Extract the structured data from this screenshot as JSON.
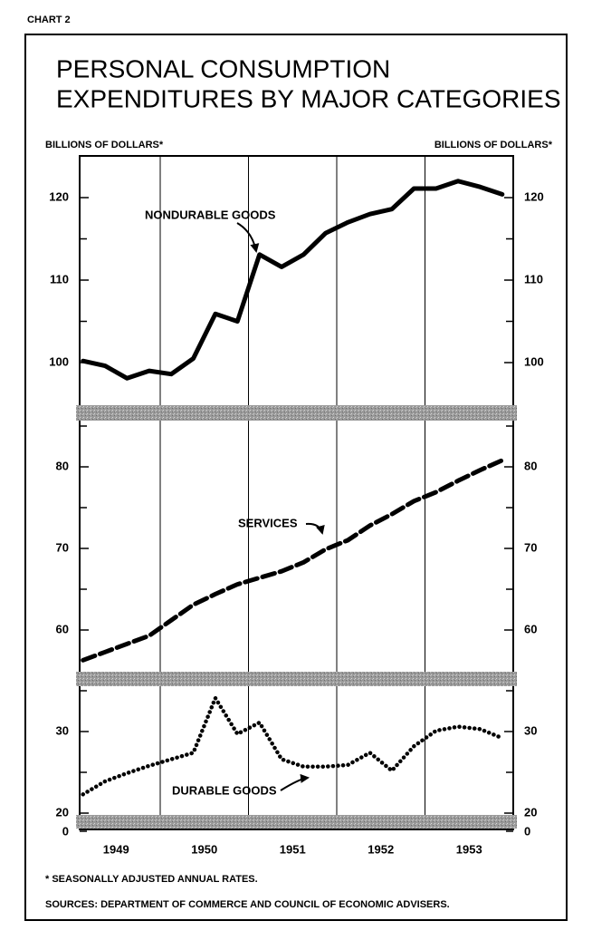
{
  "chart_data": {
    "type": "line",
    "chart_label": "CHART 2",
    "title": [
      "PERSONAL CONSUMPTION",
      "EXPENDITURES BY MAJOR CATEGORIES"
    ],
    "y_label": "BILLIONS OF DOLLARS*",
    "y2_label": "BILLIONS OF DOLLARS*",
    "footnote": "* SEASONALLY ADJUSTED ANNUAL RATES.",
    "source": "SOURCES: DEPARTMENT OF COMMERCE AND COUNCIL OF ECONOMIC ADVISERS.",
    "categories": [
      "1949",
      "1950",
      "1951",
      "1952",
      "1953"
    ],
    "grid": true,
    "floor_tick": 0,
    "panels": [
      {
        "ylim": [
          95,
          125
        ],
        "yticks": [
          100,
          110,
          120
        ],
        "minor_yticks": [
          105,
          115
        ],
        "series": [
          {
            "name": "NONDURABLE GOODS",
            "color": "#000000",
            "dash": "solid",
            "values": [
              [
                100.2,
                99.6,
                98.1,
                99.0
              ],
              [
                98.6,
                100.5,
                105.9,
                105.0
              ],
              [
                113.1,
                111.6,
                113.1,
                115.7
              ],
              [
                117.0,
                118.0,
                118.6,
                121.1
              ],
              [
                121.1,
                122.0,
                121.3,
                120.4
              ]
            ]
          }
        ]
      },
      {
        "ylim": [
          55,
          85.5
        ],
        "yticks": [
          60,
          70,
          80
        ],
        "minor_yticks": [
          65,
          75,
          85
        ],
        "series": [
          {
            "name": "SERVICES",
            "color": "#000000",
            "dash": "dashed",
            "values": [
              [
                56.3,
                57.3,
                58.3,
                59.3
              ],
              [
                61.2,
                63.1,
                64.4,
                65.6
              ],
              [
                66.4,
                67.2,
                68.3,
                69.9
              ],
              [
                71.0,
                72.8,
                74.2,
                75.8
              ],
              [
                76.9,
                78.3,
                79.6,
                80.8
              ]
            ]
          }
        ]
      },
      {
        "ylim": [
          20,
          35.5
        ],
        "yticks": [
          20,
          30
        ],
        "minor_yticks": [
          25,
          35
        ],
        "series": [
          {
            "name": "DURABLE GOODS",
            "color": "#000000",
            "dash": "dotted",
            "values": [
              [
                22.3,
                23.9,
                24.9,
                25.8
              ],
              [
                26.6,
                27.4,
                34.1,
                29.7
              ],
              [
                31.1,
                26.6,
                25.7,
                25.7
              ],
              [
                25.9,
                27.4,
                25.2,
                28.2
              ],
              [
                30.1,
                30.6,
                30.3,
                29.2
              ]
            ]
          }
        ]
      }
    ]
  }
}
